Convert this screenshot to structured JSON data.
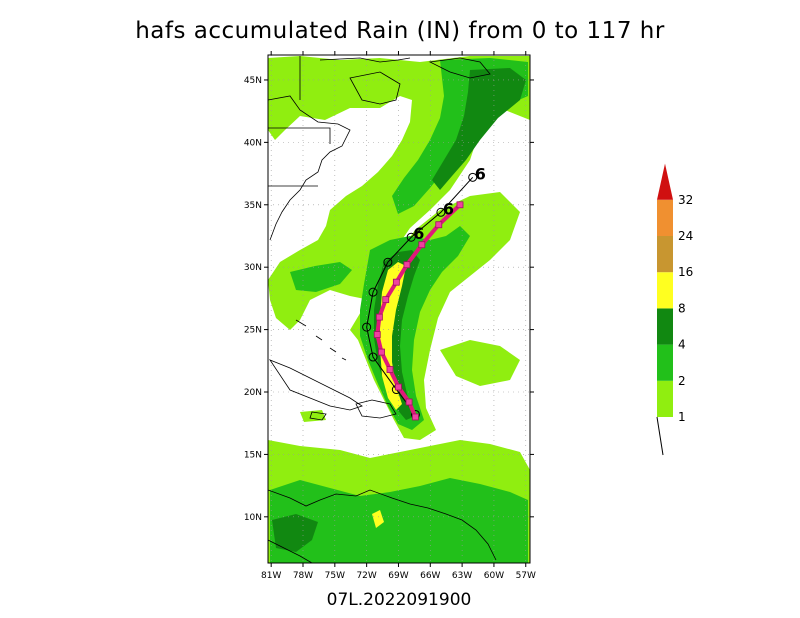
{
  "title": "hafs accumulated Rain (IN) from 0 to 117 hr",
  "footer": "07L.2022091900",
  "lat_labels": [
    "45N",
    "40N",
    "35N",
    "30N",
    "25N",
    "20N",
    "15N",
    "10N"
  ],
  "lat_values": [
    45,
    40,
    35,
    30,
    25,
    20,
    15,
    10
  ],
  "lon_labels": [
    "81W",
    "78W",
    "75W",
    "72W",
    "69W",
    "66W",
    "63W",
    "60W",
    "57W"
  ],
  "lon_values": [
    -81,
    -78,
    -75,
    -72,
    -69,
    -66,
    -63,
    -60,
    -57
  ],
  "colorbar": {
    "labels": [
      "1",
      "2",
      "4",
      "8",
      "16",
      "24",
      "32"
    ],
    "colors": [
      "#90ee10",
      "#22c01a",
      "#118811",
      "#ffff20",
      "#c89630",
      "#f09030",
      "#d01010"
    ]
  },
  "track_symbol": "6",
  "track": [
    {
      "lon": -67.4,
      "lat": 18.0
    },
    {
      "lon": -68.0,
      "lat": 19.2
    },
    {
      "lon": -69.0,
      "lat": 20.4
    },
    {
      "lon": -69.8,
      "lat": 21.8
    },
    {
      "lon": -70.6,
      "lat": 23.2
    },
    {
      "lon": -71.0,
      "lat": 24.6
    },
    {
      "lon": -70.8,
      "lat": 26.0
    },
    {
      "lon": -70.2,
      "lat": 27.4
    },
    {
      "lon": -69.2,
      "lat": 28.8
    },
    {
      "lon": -68.2,
      "lat": 30.2
    },
    {
      "lon": -66.8,
      "lat": 31.8
    },
    {
      "lon": -65.2,
      "lat": 33.4
    },
    {
      "lon": -63.2,
      "lat": 35.0
    }
  ],
  "black_track": [
    {
      "lon": -67.4,
      "lat": 18.2
    },
    {
      "lon": -69.2,
      "lat": 20.2
    },
    {
      "lon": -71.4,
      "lat": 22.8
    },
    {
      "lon": -72.0,
      "lat": 25.2
    },
    {
      "lon": -71.4,
      "lat": 28.0
    },
    {
      "lon": -70.0,
      "lat": 30.4
    },
    {
      "lon": -67.8,
      "lat": 32.4
    },
    {
      "lon": -65.0,
      "lat": 34.4
    },
    {
      "lon": -62.0,
      "lat": 37.2
    }
  ]
}
